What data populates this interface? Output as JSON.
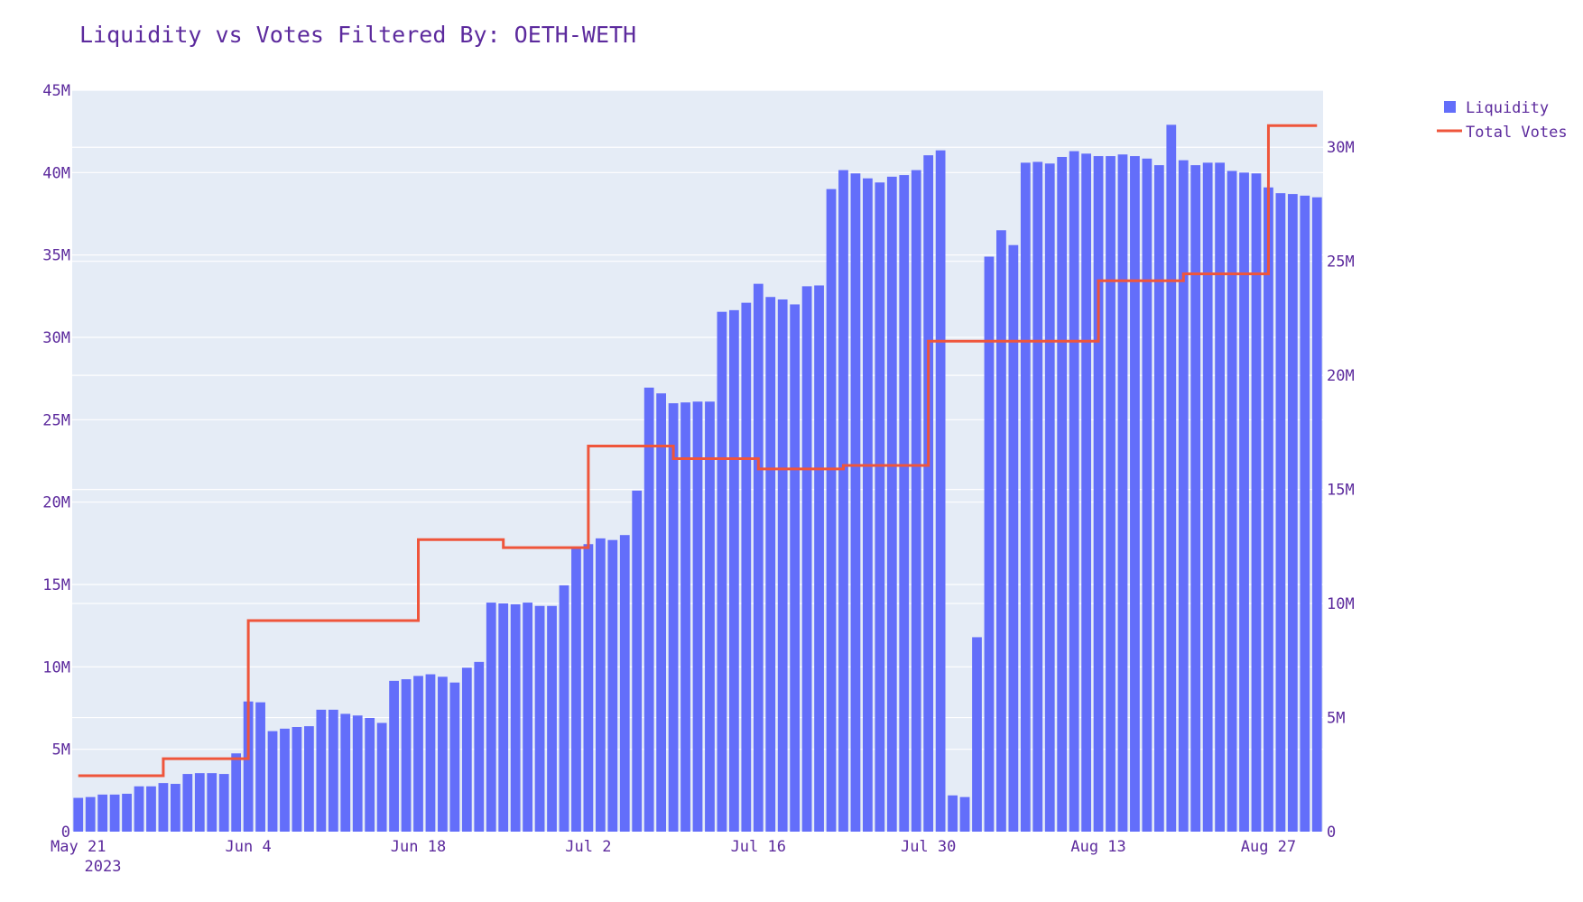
{
  "chart_data": {
    "type": "bar",
    "title": "Liquidity vs Votes Filtered By: OETH-WETH",
    "x_tick_labels": [
      "May 21",
      "Jun 4",
      "Jun 18",
      "Jul 2",
      "Jul 16",
      "Jul 30",
      "Aug 13",
      "Aug 27"
    ],
    "x_year_label": "2023",
    "x_start_date": "2023-05-21",
    "x_end_date": "2023-08-27",
    "y_left_ticks": [
      "0",
      "5M",
      "10M",
      "15M",
      "20M",
      "25M",
      "30M",
      "35M",
      "40M",
      "45M"
    ],
    "y_left_range": [
      0,
      45000000
    ],
    "y_right_ticks": [
      "0",
      "5M",
      "10M",
      "15M",
      "20M",
      "25M",
      "30M"
    ],
    "y_right_range": [
      0,
      32500000
    ],
    "grid": true,
    "legend_position": "top-right",
    "series": [
      {
        "name": "Liquidity",
        "type": "bar",
        "axis": "left",
        "color": "#636efa",
        "values": [
          2.05,
          2.1,
          2.25,
          2.25,
          2.3,
          2.75,
          2.75,
          2.95,
          2.9,
          3.5,
          3.55,
          3.55,
          3.5,
          4.75,
          7.9,
          7.85,
          6.1,
          6.25,
          6.35,
          6.4,
          7.4,
          7.4,
          7.15,
          7.05,
          6.9,
          6.6,
          9.15,
          9.25,
          9.45,
          9.55,
          9.4,
          9.05,
          9.95,
          10.3,
          13.9,
          13.85,
          13.8,
          13.9,
          13.7,
          13.7,
          14.95,
          17.2,
          17.45,
          17.8,
          17.7,
          18.0,
          20.7,
          26.95,
          26.6,
          26.0,
          26.05,
          26.1,
          26.1,
          31.55,
          31.65,
          32.1,
          33.25,
          32.45,
          32.3,
          32.0,
          33.1,
          33.15,
          39.0,
          40.15,
          39.95,
          39.65,
          39.4,
          39.75,
          39.85,
          40.15,
          41.05,
          41.35,
          2.2,
          2.1,
          11.8,
          34.9,
          36.5,
          35.6,
          40.6,
          40.65,
          40.55,
          40.95,
          41.3,
          41.15,
          41.0,
          41.0,
          41.1,
          41.0,
          40.85,
          40.45,
          42.9,
          40.75,
          40.45,
          40.6,
          40.6,
          40.1,
          40.0,
          39.95,
          39.1,
          38.75,
          38.7,
          38.6,
          38.5
        ],
        "unit": "M"
      },
      {
        "name": "Total Votes",
        "type": "line",
        "shape": "step",
        "axis": "right",
        "color": "#ef553b",
        "steps": [
          {
            "from": "2023-05-21",
            "value": 2.45
          },
          {
            "from": "2023-05-28",
            "value": 3.2
          },
          {
            "from": "2023-06-04",
            "value": 9.25
          },
          {
            "from": "2023-06-18",
            "value": 12.8
          },
          {
            "from": "2023-06-25",
            "value": 12.45
          },
          {
            "from": "2023-07-02",
            "value": 16.9
          },
          {
            "from": "2023-07-09",
            "value": 16.35
          },
          {
            "from": "2023-07-16",
            "value": 15.9
          },
          {
            "from": "2023-07-23",
            "value": 16.05
          },
          {
            "from": "2023-07-30",
            "value": 21.5
          },
          {
            "from": "2023-08-13",
            "value": 24.15
          },
          {
            "from": "2023-08-20",
            "value": 24.45
          },
          {
            "from": "2023-08-27",
            "value": 30.95
          }
        ],
        "end_date": "2023-08-27",
        "unit": "M"
      }
    ]
  }
}
